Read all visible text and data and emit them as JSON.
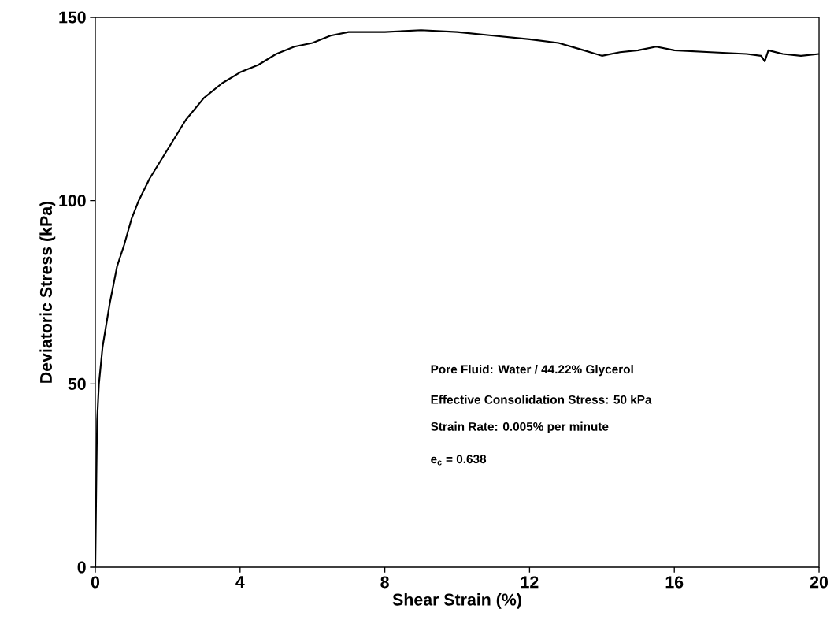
{
  "chart_data": {
    "type": "line",
    "xlabel": "Shear Strain (%)",
    "ylabel": "Deviatoric Stress (kPa)",
    "xlim": [
      0,
      20
    ],
    "ylim": [
      0,
      150
    ],
    "xticks": [
      0,
      4,
      8,
      12,
      16,
      20
    ],
    "yticks": [
      0,
      50,
      100,
      150
    ],
    "grid": false,
    "marker": "none",
    "line_style": "solid",
    "series": [
      {
        "color": "#000000",
        "x": [
          0,
          0.03,
          0.05,
          0.1,
          0.2,
          0.4,
          0.6,
          0.8,
          1.0,
          1.2,
          1.5,
          2.0,
          2.5,
          3.0,
          3.5,
          4.0,
          4.5,
          5.0,
          5.5,
          6.0,
          6.5,
          7.0,
          8.0,
          9.0,
          10.0,
          11.0,
          12.0,
          12.8,
          13.5,
          14.0,
          14.5,
          15.0,
          15.5,
          16.0,
          17.0,
          18.0,
          18.4,
          18.5,
          18.6,
          19.0,
          19.5,
          20.0
        ],
        "values": [
          0,
          25,
          40,
          50,
          60,
          72,
          82,
          88,
          95,
          100,
          106,
          114,
          122,
          128,
          132,
          135,
          137,
          140,
          142,
          143,
          145,
          146,
          146,
          146.5,
          146,
          145,
          144,
          143,
          141,
          139.5,
          140.5,
          141,
          142,
          141,
          140.5,
          140,
          139.5,
          138,
          141,
          140,
          139.5,
          140
        ]
      }
    ],
    "annotations": [
      "Pore Fluid: Water / 44.22% Glycerol",
      "Effective Consolidation Stress: 50 kPa",
      "Strain Rate: 0.005% per minute",
      "e$_{c}$ = 0.638"
    ]
  }
}
